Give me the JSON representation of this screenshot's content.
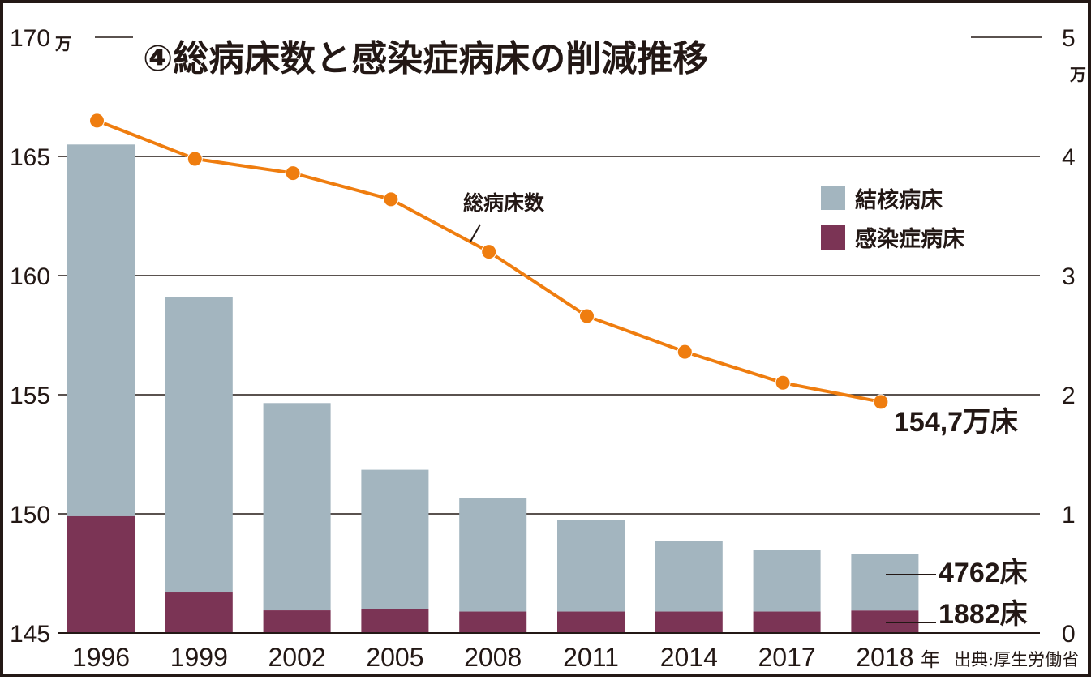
{
  "chart_data": {
    "type": "bar",
    "title": "④総病床数と感染症病床の削減推移",
    "categories": [
      "1996",
      "1999",
      "2002",
      "2005",
      "2008",
      "2011",
      "2014",
      "2017",
      "2018"
    ],
    "x_unit": "年",
    "left_axis": {
      "label": "総病床数",
      "unit": "万",
      "ylim": [
        145,
        170
      ],
      "ticks": [
        145,
        150,
        155,
        160,
        165,
        170
      ]
    },
    "right_axis": {
      "unit": "万",
      "ylim": [
        0,
        5
      ],
      "ticks": [
        0,
        1,
        2,
        3,
        4,
        5
      ]
    },
    "series": [
      {
        "name": "結核病床",
        "type": "bar-stacked",
        "axis": "right",
        "color": "#A3B5BF",
        "values": [
          3.12,
          2.48,
          1.74,
          1.17,
          0.95,
          0.77,
          0.59,
          0.52,
          0.4762
        ]
      },
      {
        "name": "感染症病床",
        "type": "bar-stacked",
        "axis": "right",
        "color": "#7B3455",
        "values": [
          0.98,
          0.34,
          0.19,
          0.2,
          0.18,
          0.18,
          0.18,
          0.18,
          0.1882
        ]
      },
      {
        "name": "総病床数",
        "type": "line",
        "axis": "left",
        "color": "#EF7D0F",
        "values": [
          166.5,
          164.9,
          164.3,
          163.2,
          161.0,
          158.3,
          156.8,
          155.5,
          154.7
        ]
      }
    ],
    "legend": {
      "placement": "top-right",
      "items": [
        {
          "label": "結核病床",
          "color": "#A3B5BF"
        },
        {
          "label": "感染症病床",
          "color": "#7B3455"
        }
      ]
    },
    "annotations": {
      "line_label": "総病床数",
      "last_total": "154,7万床",
      "last_tb": "4762床",
      "last_infect": "1882床"
    },
    "source": "出典:厚生労働省",
    "grid": true
  }
}
